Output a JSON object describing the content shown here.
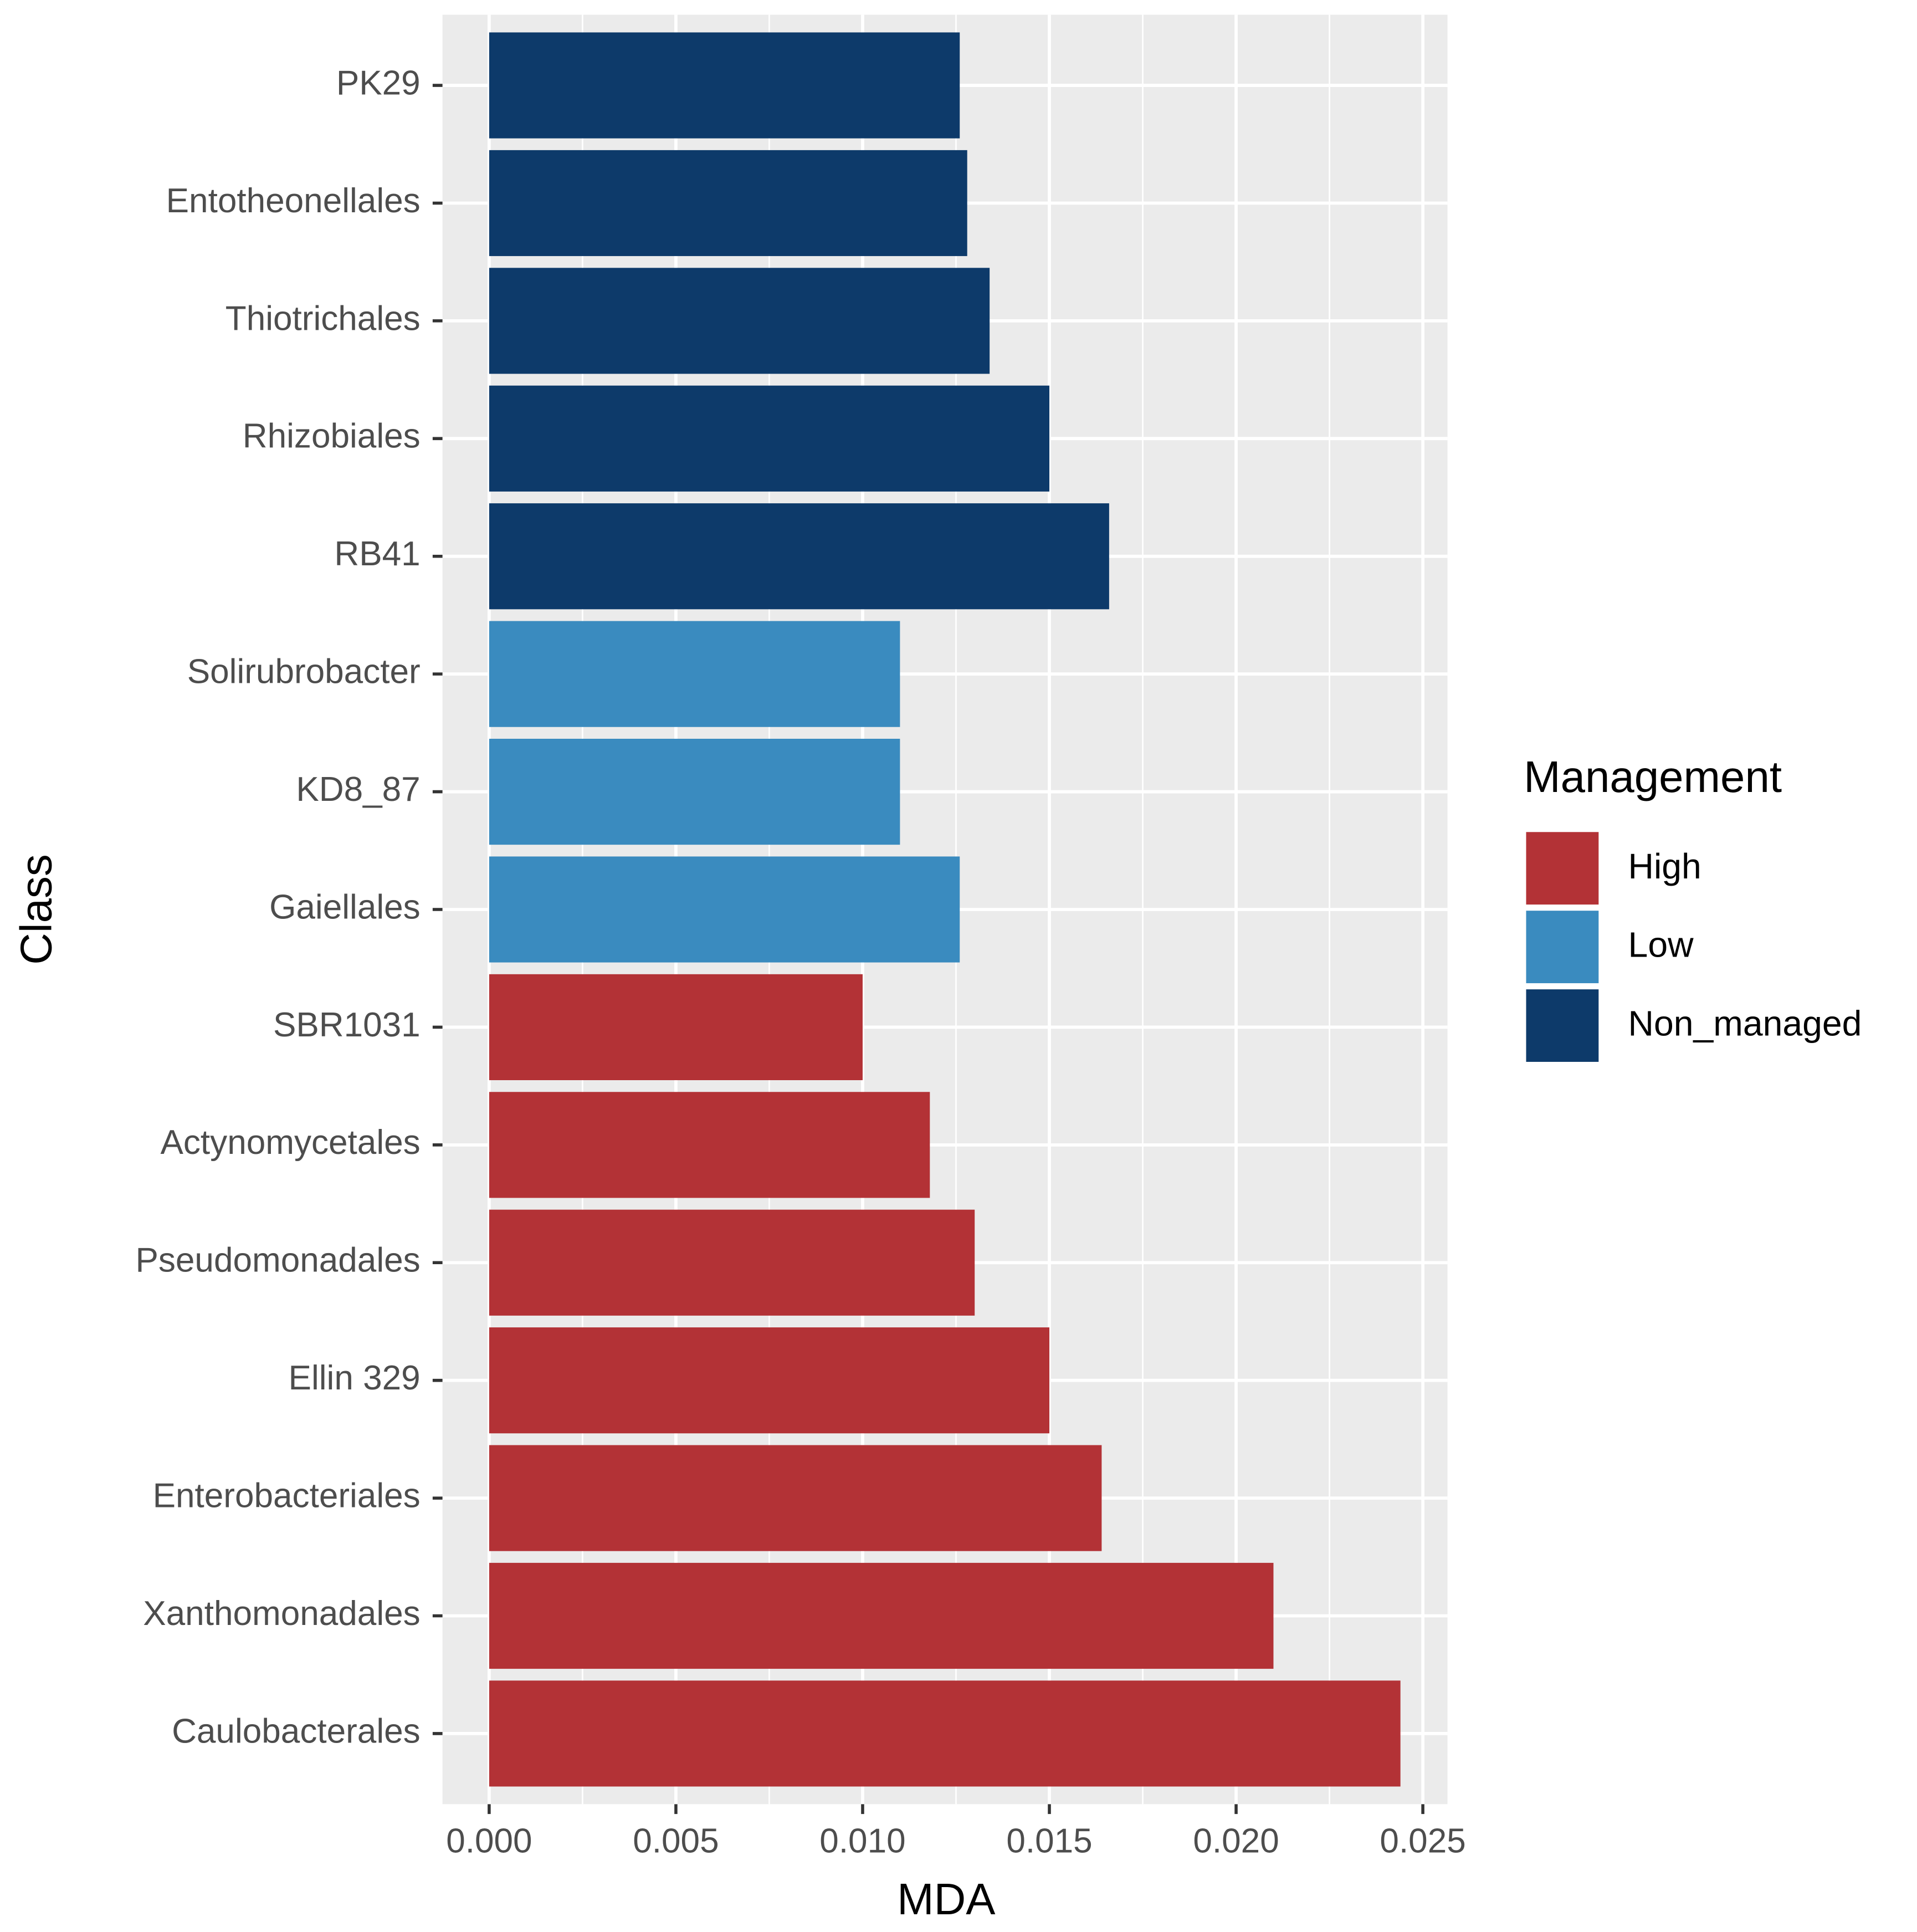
{
  "chart_data": {
    "type": "bar",
    "orientation": "horizontal",
    "x_label": "MDA",
    "y_label": "Class",
    "legend_title": "Management",
    "legend_position": "right",
    "categories": [
      "PK29",
      "Entotheonellales",
      "Thiotrichales",
      "Rhizobiales",
      "RB41",
      "Solirubrobacter",
      "KD8_87",
      "Gaiellales",
      "SBR1031",
      "Actynomycetales",
      "Pseudomonadales",
      "Ellin 329",
      "Enterobacteriales",
      "Xanthomonadales",
      "Caulobacterales"
    ],
    "series": [
      {
        "name": "High",
        "color": "#b33236",
        "values": [
          null,
          null,
          null,
          null,
          null,
          null,
          null,
          null,
          0.01,
          0.0118,
          0.013,
          0.015,
          0.0164,
          0.021,
          0.0244
        ]
      },
      {
        "name": "Low",
        "color": "#3a8bbf",
        "values": [
          null,
          null,
          null,
          null,
          null,
          0.011,
          0.011,
          0.0126,
          null,
          null,
          null,
          null,
          null,
          null,
          null
        ]
      },
      {
        "name": "Non_managed",
        "color": "#0d3a6a",
        "values": [
          0.0126,
          0.0128,
          0.0134,
          0.015,
          0.0166,
          null,
          null,
          null,
          null,
          null,
          null,
          null,
          null,
          null,
          null
        ]
      }
    ],
    "xlim": [
      -0.00125,
      0.02566
    ],
    "xticks": [
      {
        "value": 0,
        "label": "0.000"
      },
      {
        "value": 0.005,
        "label": "0.005"
      },
      {
        "value": 0.01,
        "label": "0.010"
      },
      {
        "value": 0.015,
        "label": "0.015"
      },
      {
        "value": 0.02,
        "label": "0.020"
      },
      {
        "value": 0.025,
        "label": "0.025"
      }
    ],
    "grid": true
  }
}
